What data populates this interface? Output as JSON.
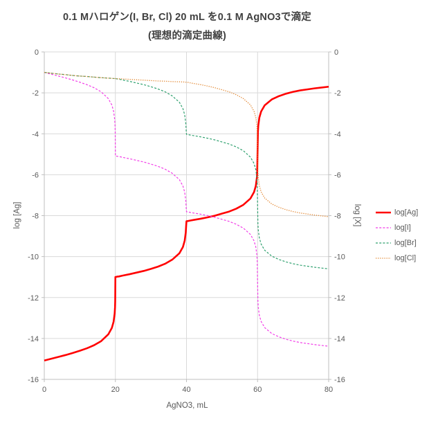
{
  "chart_data": {
    "type": "line",
    "title": "0.1 Mハロゲン(I, Br, Cl) 20 mL を0.1 M AgNO3で滴定",
    "subtitle": "(理想的滴定曲線)",
    "xlabel": "AgNO3, mL",
    "ylabel_left": "log [Ag]",
    "ylabel_right": "log [X]",
    "xlim": [
      0,
      80
    ],
    "ylim": [
      -16,
      0
    ],
    "xticks": [
      0,
      20,
      40,
      60,
      80
    ],
    "yticks": [
      0,
      -2,
      -4,
      -6,
      -8,
      -10,
      -12,
      -14,
      -16
    ],
    "grid": true,
    "legend_position": "right-middle",
    "x": [
      0,
      2,
      4,
      6,
      8,
      10,
      12,
      14,
      16,
      18,
      19,
      19.5,
      19.8,
      19.9,
      19.95,
      20,
      20.5,
      21,
      22,
      24,
      26,
      28,
      30,
      32,
      34,
      36,
      38,
      39,
      39.5,
      39.8,
      39.9,
      40,
      40.5,
      41,
      42,
      44,
      46,
      48,
      50,
      52,
      54,
      56,
      58,
      59,
      59.5,
      59.8,
      59.9,
      60,
      60.1,
      60.2,
      60.5,
      61,
      62,
      64,
      66,
      68,
      70,
      72,
      74,
      76,
      78,
      80
    ],
    "series": [
      {
        "key": "ag",
        "name": "log[Ag]",
        "color": "#FF0000",
        "style": "solid",
        "width": 2.6,
        "axis": "left",
        "values": [
          -15.08,
          -14.99,
          -14.9,
          -14.81,
          -14.71,
          -14.6,
          -14.48,
          -14.33,
          -14.13,
          -13.8,
          -13.49,
          -13.18,
          -12.78,
          -12.48,
          -12.18,
          -11,
          -10.98,
          -10.97,
          -10.93,
          -10.86,
          -10.78,
          -10.7,
          -10.6,
          -10.49,
          -10.35,
          -10.15,
          -9.84,
          -9.53,
          -9.22,
          -8.82,
          -8.52,
          -8.27,
          -8.26,
          -8.24,
          -8.21,
          -8.15,
          -8.08,
          -8,
          -7.9,
          -7.8,
          -7.66,
          -7.47,
          -7.16,
          -6.85,
          -6.55,
          -6.15,
          -5.85,
          -4.88,
          -3.9,
          -3.6,
          -3.21,
          -2.91,
          -2.61,
          -2.32,
          -2.16,
          -2.04,
          -1.95,
          -1.88,
          -1.83,
          -1.78,
          -1.74,
          -1.7
        ]
      },
      {
        "key": "i",
        "name": "log[I]",
        "color": "#F23CE8",
        "style": "dash",
        "width": 1.2,
        "axis": "right",
        "values": [
          -1,
          -1.09,
          -1.18,
          -1.27,
          -1.37,
          -1.48,
          -1.6,
          -1.75,
          -1.95,
          -2.28,
          -2.59,
          -2.9,
          -3.3,
          -3.6,
          -3.9,
          -5.08,
          -5.1,
          -5.11,
          -5.15,
          -5.22,
          -5.3,
          -5.38,
          -5.48,
          -5.59,
          -5.73,
          -5.93,
          -6.24,
          -6.55,
          -6.86,
          -7.26,
          -7.56,
          -7.81,
          -7.82,
          -7.84,
          -7.87,
          -7.93,
          -8,
          -8.08,
          -8.18,
          -8.28,
          -8.42,
          -8.61,
          -8.92,
          -9.23,
          -9.53,
          -9.93,
          -10.23,
          -11.21,
          -12.18,
          -12.48,
          -12.87,
          -13.17,
          -13.47,
          -13.76,
          -13.92,
          -14.04,
          -14.13,
          -14.2,
          -14.25,
          -14.3,
          -14.34,
          -14.38
        ]
      },
      {
        "key": "br",
        "name": "log[Br]",
        "color": "#2EA06E",
        "style": "dash",
        "width": 1.2,
        "axis": "right",
        "values": [
          -1,
          -1.04,
          -1.08,
          -1.11,
          -1.15,
          -1.18,
          -1.2,
          -1.23,
          -1.26,
          -1.28,
          -1.29,
          -1.3,
          -1.3,
          -1.3,
          -1.3,
          -1.3,
          -1.32,
          -1.33,
          -1.37,
          -1.44,
          -1.52,
          -1.6,
          -1.7,
          -1.81,
          -1.95,
          -2.15,
          -2.46,
          -2.77,
          -3.08,
          -3.48,
          -3.78,
          -4.03,
          -4.04,
          -4.06,
          -4.09,
          -4.15,
          -4.22,
          -4.3,
          -4.4,
          -4.5,
          -4.64,
          -4.83,
          -5.14,
          -5.45,
          -5.75,
          -6.15,
          -6.45,
          -7.43,
          -8.4,
          -8.7,
          -9.09,
          -9.39,
          -9.69,
          -9.98,
          -10.14,
          -10.26,
          -10.35,
          -10.42,
          -10.47,
          -10.52,
          -10.56,
          -10.6
        ]
      },
      {
        "key": "cl",
        "name": "log[Cl]",
        "color": "#E2862F",
        "style": "dot",
        "width": 1.3,
        "axis": "right",
        "values": [
          -1,
          -1.04,
          -1.08,
          -1.11,
          -1.15,
          -1.18,
          -1.2,
          -1.23,
          -1.26,
          -1.28,
          -1.29,
          -1.3,
          -1.3,
          -1.3,
          -1.3,
          -1.3,
          -1.31,
          -1.31,
          -1.32,
          -1.34,
          -1.36,
          -1.38,
          -1.4,
          -1.42,
          -1.43,
          -1.45,
          -1.46,
          -1.47,
          -1.47,
          -1.48,
          -1.48,
          -1.48,
          -1.49,
          -1.51,
          -1.54,
          -1.6,
          -1.67,
          -1.75,
          -1.85,
          -1.95,
          -2.09,
          -2.28,
          -2.59,
          -2.9,
          -3.2,
          -3.6,
          -3.9,
          -4.88,
          -5.85,
          -6.15,
          -6.54,
          -6.84,
          -7.14,
          -7.43,
          -7.59,
          -7.71,
          -7.8,
          -7.87,
          -7.92,
          -7.97,
          -8.01,
          -8.05
        ]
      }
    ],
    "equivalence_points_mL": [
      20,
      40,
      60
    ]
  },
  "styles": {
    "background": "#FFFFFF",
    "grid_color": "#D9D9D9",
    "axis_color": "#BFBFBF",
    "text_color": "#595959",
    "title_color": "#404040"
  }
}
